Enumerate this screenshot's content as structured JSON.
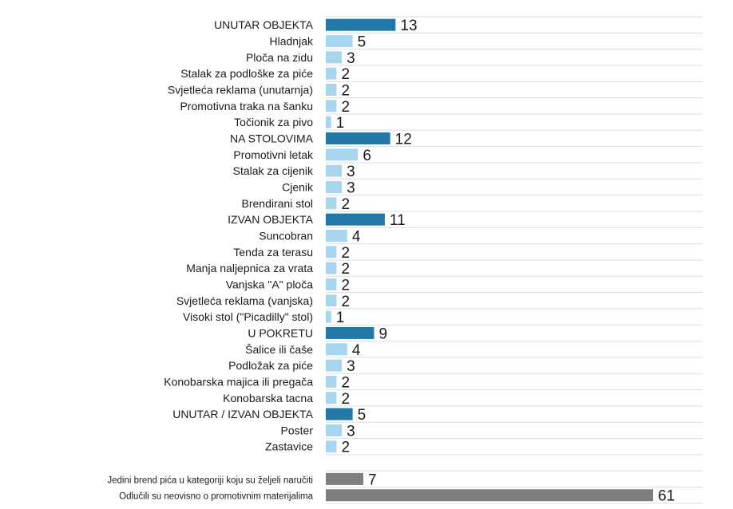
{
  "chart_data": {
    "type": "bar",
    "orientation": "horizontal",
    "categories": [
      "UNUTAR OBJEKTA",
      "Hladnjak",
      "Ploča na zidu",
      "Stalak za podloške za piće",
      "Svjetleća reklama (unutarnja)",
      "Promotivna traka na šanku",
      "Točionik za pivo",
      "NA STOLOVIMA",
      "Promotivni letak",
      "Stalak za cijenik",
      "Cjenik",
      "Brendirani stol",
      "IZVAN OBJEKTA",
      "Suncobran",
      "Tenda za terasu",
      "Manja naljepnica za vrata",
      "Vanjska \"A\" ploča",
      "Svjetleća reklama (vanjska)",
      "Visoki stol (\"Picadilly\" stol)",
      "U POKRETU",
      "Šalice ili čaše",
      "Podložak za piće",
      "Konobarska majica ili pregača",
      "Konobarska tacna",
      "UNUTAR / IZVAN OBJEKTA",
      "Poster",
      "Zastavice",
      "",
      "Jedini brend pića u kategoriji koju su željeli naručiti",
      "Odlučili su neovisno o promotivnim materijalima"
    ],
    "values": [
      13,
      5,
      3,
      2,
      2,
      2,
      1,
      12,
      6,
      3,
      3,
      2,
      11,
      4,
      2,
      2,
      2,
      2,
      1,
      9,
      4,
      3,
      2,
      2,
      5,
      3,
      2,
      null,
      7,
      61
    ],
    "kinds": [
      "group",
      "item",
      "item",
      "item",
      "item",
      "item",
      "item",
      "group",
      "item",
      "item",
      "item",
      "item",
      "group",
      "item",
      "item",
      "item",
      "item",
      "item",
      "item",
      "group",
      "item",
      "item",
      "item",
      "item",
      "group",
      "item",
      "item",
      "gap",
      "other",
      "other"
    ],
    "xlim": [
      0,
      61
    ],
    "grid": "horizontal row separators",
    "colors": {
      "group": "#2478a8",
      "item": "#a9d6ef",
      "other": "#7f7f7f",
      "grid": "#dddddd"
    }
  }
}
